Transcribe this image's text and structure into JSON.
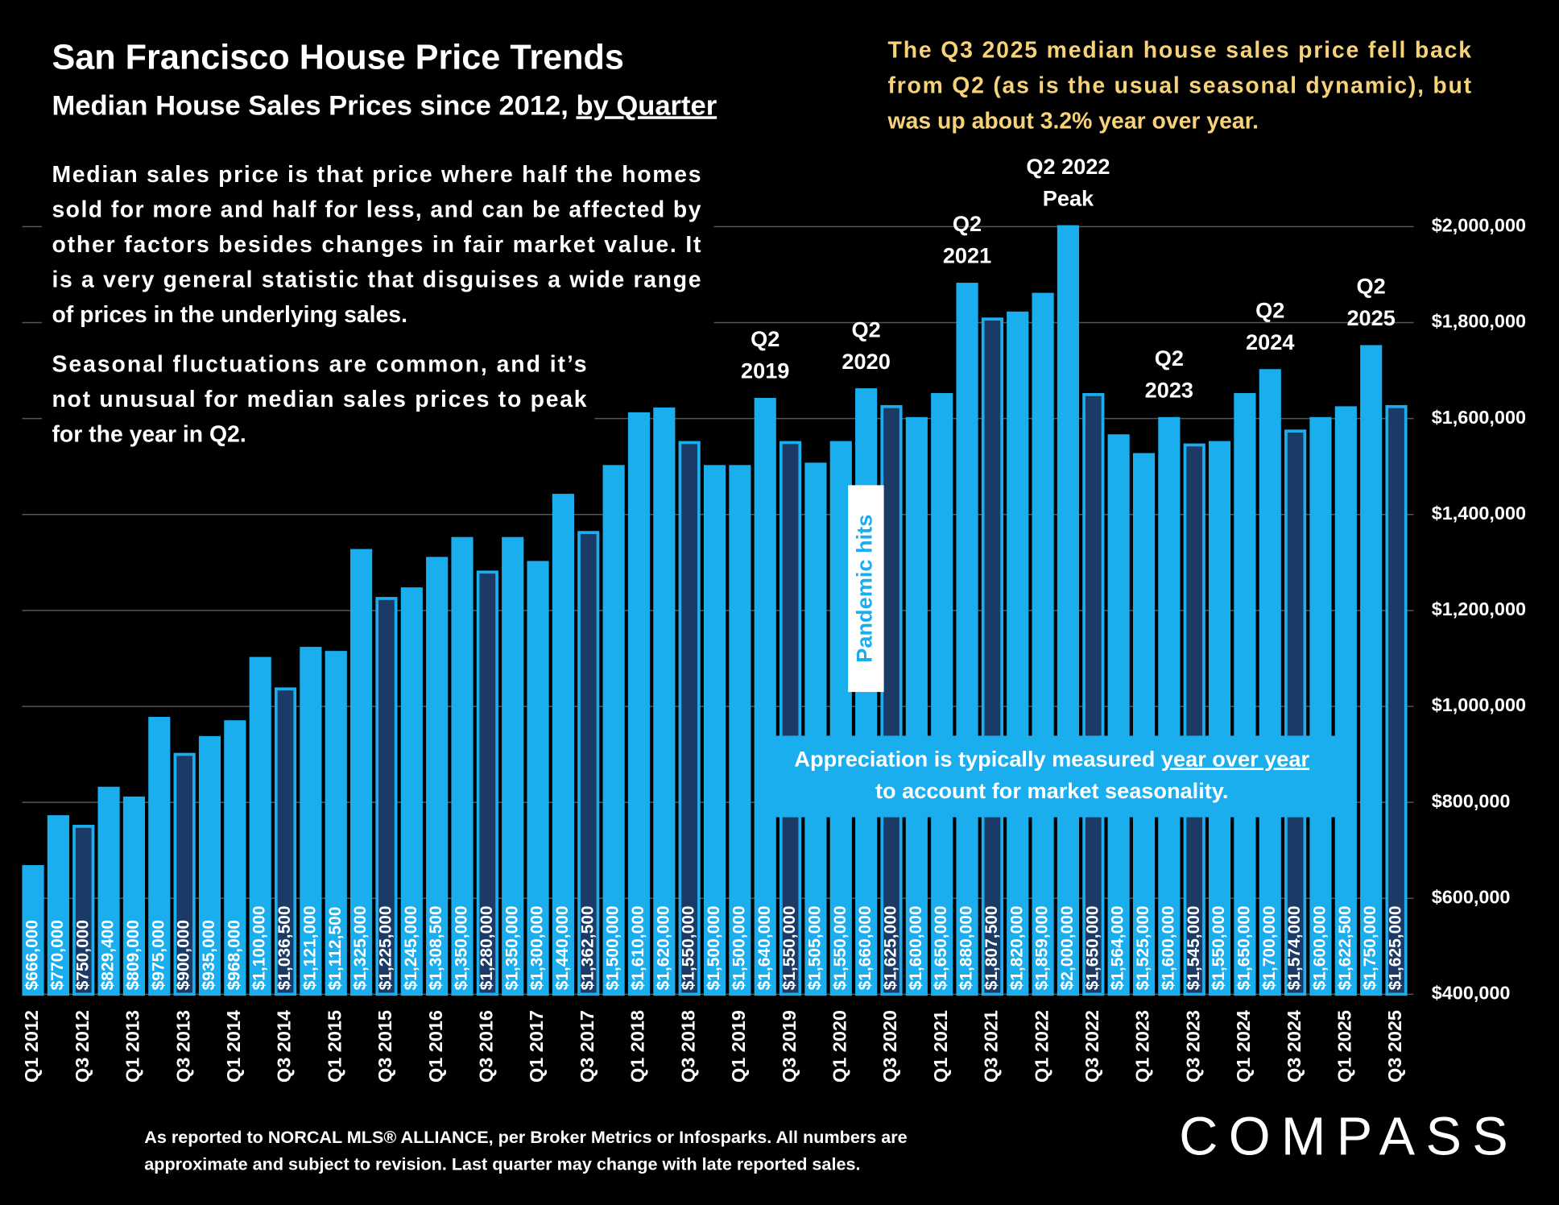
{
  "chart_data": {
    "type": "bar",
    "title": "San Francisco House Price Trends",
    "subtitle": [
      "Median House Sales Prices since 2012, ",
      "by Quarter"
    ],
    "notes": [
      [
        "Median sales price is that price where half the homes",
        "sold for more and half for less, and can be affected by",
        "other factors besides changes in fair market value. It",
        "is a very general statistic that disguises a wide range",
        "of prices in the underlying sales."
      ],
      [
        "Seasonal fluctuations are common, and it’s",
        "not unusual for median sales prices to peak",
        "for the year in Q2."
      ]
    ],
    "callout": [
      "The Q3 2025 median house sales price fell back",
      "from Q2 (as is the usual seasonal dynamic), but",
      "was up about 3.2% year over year."
    ],
    "annotations": [
      [
        "Q2",
        "2019"
      ],
      [
        "Q2",
        "2020"
      ],
      [
        "Q2",
        "2021"
      ],
      [
        "Q2 2022",
        "Peak"
      ],
      [
        "Q2",
        "2023"
      ],
      [
        "Q2",
        "2024"
      ],
      [
        "Q2",
        "2025"
      ]
    ],
    "event_label": "Pandemic hits",
    "appreciation_note": [
      "Appreciation is typically measured ",
      "year over year",
      "to account for market seasonality."
    ],
    "footnote": [
      "As reported to NORCAL MLS® ALLIANCE, per Broker Metrics or Infosparks. All numbers are",
      "approximate and subject to revision. Last quarter may change with late reported sales."
    ],
    "brand": "COMPASS",
    "categories": [
      "Q1 2012",
      null,
      "Q3 2012",
      null,
      "Q1 2013",
      null,
      "Q3 2013",
      null,
      "Q1 2014",
      null,
      "Q3 2014",
      null,
      "Q1 2015",
      null,
      "Q3 2015",
      null,
      "Q1 2016",
      null,
      "Q3 2016",
      null,
      "Q1 2017",
      null,
      "Q3 2017",
      null,
      "Q1 2018",
      null,
      "Q3 2018",
      null,
      "Q1 2019",
      null,
      "Q3 2019",
      null,
      "Q1 2020",
      null,
      "Q3 2020",
      null,
      "Q1 2021",
      null,
      "Q3 2021",
      null,
      "Q1 2022",
      null,
      "Q3 2022",
      null,
      "Q1 2023",
      null,
      "Q3 2023",
      null,
      "Q1 2024",
      null,
      "Q3 2024",
      null,
      "Q1 2025",
      null,
      "Q3 2025"
    ],
    "values": [
      666000,
      770000,
      750000,
      829400,
      809000,
      975000,
      900000,
      935000,
      968000,
      1100000,
      1036500,
      1121000,
      1112500,
      1325000,
      1225000,
      1245000,
      1308500,
      1350000,
      1280000,
      1350000,
      1300000,
      1440000,
      1362500,
      1500000,
      1610000,
      1620000,
      1550000,
      1500000,
      1500000,
      1640000,
      1550000,
      1505000,
      1550000,
      1660000,
      1625000,
      1600000,
      1650000,
      1880000,
      1807500,
      1820000,
      1859000,
      2000000,
      1650000,
      1564000,
      1525000,
      1600000,
      1545000,
      1550000,
      1650000,
      1700000,
      1574000,
      1600000,
      1622500,
      1750000,
      1625000
    ],
    "value_labels": [
      "$666,000",
      "$770,000",
      "$750,000",
      "$829,400",
      "$809,000",
      "$975,000",
      "$900,000",
      "$935,000",
      "$968,000",
      "$1,100,000",
      "$1,036,500",
      "$1,121,000",
      "$1,112,500",
      "$1,325,000",
      "$1,225,000",
      "$1,245,000",
      "$1,308,500",
      "$1,350,000",
      "$1,280,000",
      "$1,350,000",
      "$1,300,000",
      "$1,440,000",
      "$1,362,500",
      "$1,500,000",
      "$1,610,000",
      "$1,620,000",
      "$1,550,000",
      "$1,500,000",
      "$1,500,000",
      "$1,640,000",
      "$1,550,000",
      "$1,505,000",
      "$1,550,000",
      "$1,660,000",
      "$1,625,000",
      "$1,600,000",
      "$1,650,000",
      "$1,880,000",
      "$1,807,500",
      "$1,820,000",
      "$1,859,000",
      "$2,000,000",
      "$1,650,000",
      "$1,564,000",
      "$1,525,000",
      "$1,600,000",
      "$1,545,000",
      "$1,550,000",
      "$1,650,000",
      "$1,700,000",
      "$1,574,000",
      "$1,600,000",
      "$1,622,500",
      "$1,750,000",
      "$1,625,000"
    ],
    "bar_colors": [
      "#1aaeef",
      "#1aaeef",
      "#1b3a66",
      "#1aaeef",
      "#1aaeef",
      "#1aaeef",
      "#1b3a66",
      "#1aaeef",
      "#1aaeef",
      "#1aaeef",
      "#1b3a66",
      "#1aaeef",
      "#1aaeef",
      "#1aaeef",
      "#1b3a66",
      "#1aaeef",
      "#1aaeef",
      "#1aaeef",
      "#1b3a66",
      "#1aaeef",
      "#1aaeef",
      "#1aaeef",
      "#1b3a66",
      "#1aaeef",
      "#1aaeef",
      "#1aaeef",
      "#1b3a66",
      "#1aaeef",
      "#1aaeef",
      "#1aaeef",
      "#1b3a66",
      "#1aaeef",
      "#1aaeef",
      "#1aaeef",
      "#1b3a66",
      "#1aaeef",
      "#1aaeef",
      "#1aaeef",
      "#1b3a66",
      "#1aaeef",
      "#1aaeef",
      "#1aaeef",
      "#1b3a66",
      "#1aaeef",
      "#1aaeef",
      "#1aaeef",
      "#1b3a66",
      "#1aaeef",
      "#1aaeef",
      "#1aaeef",
      "#1b3a66",
      "#1aaeef",
      "#1aaeef",
      "#1aaeef",
      "#1b3a66"
    ],
    "bar_edge_color": "#1aaeef",
    "ylim": [
      400000,
      2000000
    ],
    "yticks": [
      {
        "value": 400000,
        "label": "$400,000"
      },
      {
        "value": 600000,
        "label": "$600,000"
      },
      {
        "value": 800000,
        "label": "$800,000"
      },
      {
        "value": 1000000,
        "label": "$1,000,000"
      },
      {
        "value": 1200000,
        "label": "$1,200,000"
      },
      {
        "value": 1400000,
        "label": "$1,400,000"
      },
      {
        "value": 1600000,
        "label": "$1,600,000"
      },
      {
        "value": 1800000,
        "label": "$1,800,000"
      },
      {
        "value": 2000000,
        "label": "$2,000,000"
      }
    ],
    "grid": true
  }
}
